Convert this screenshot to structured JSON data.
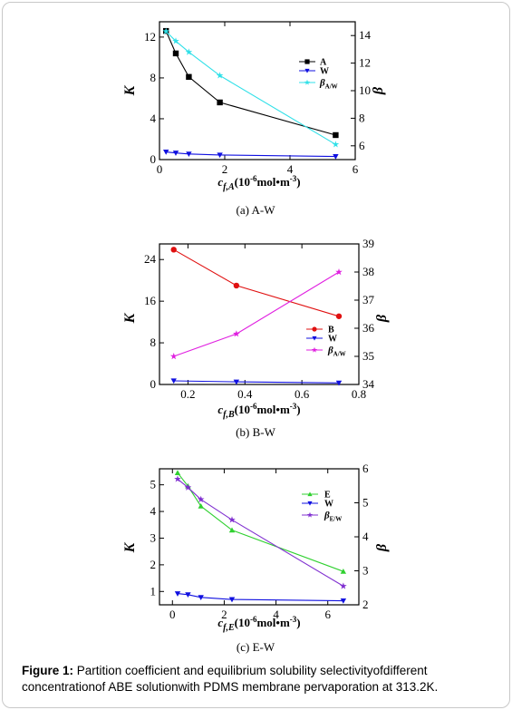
{
  "chart_data": [
    {
      "type": "line",
      "caption": "(a) A-W",
      "xlabel": "c",
      "xlabel_sub": "f,A",
      "xlabel_unit_pre": "(10",
      "xlabel_unit_exp": "-6",
      "xlabel_unit_mid": "mol•m",
      "xlabel_unit_exp2": "-3",
      "xlabel_unit_post": ")",
      "ylabel_left": "K",
      "ylabel_right": "β",
      "xlim": [
        0,
        6
      ],
      "ylim_left": [
        0,
        13.5
      ],
      "ylim_right": [
        5,
        15
      ],
      "xticks": [
        0,
        2,
        4,
        6
      ],
      "yticks_left": [
        0,
        4,
        8,
        12
      ],
      "yticks_right": [
        6,
        8,
        10,
        12,
        14
      ],
      "series": [
        {
          "name": "A",
          "axis": "left",
          "color": "#000000",
          "marker": "square",
          "x": [
            0.2,
            0.5,
            0.9,
            1.85,
            5.4
          ],
          "y": [
            12.6,
            10.4,
            8.1,
            5.6,
            2.4
          ]
        },
        {
          "name": "W",
          "axis": "left",
          "color": "#1010e0",
          "marker": "triangle-down",
          "x": [
            0.2,
            0.5,
            0.9,
            1.85,
            5.4
          ],
          "y": [
            0.75,
            0.65,
            0.55,
            0.45,
            0.3
          ]
        },
        {
          "name": "β",
          "name_sub": "A/W",
          "axis": "right",
          "color": "#30e0e8",
          "marker": "star",
          "x": [
            0.2,
            0.5,
            0.9,
            1.85,
            5.4
          ],
          "y": [
            14.3,
            13.6,
            12.8,
            11.1,
            6.1
          ]
        }
      ]
    },
    {
      "type": "line",
      "caption": "(b) B-W",
      "xlabel": "c",
      "xlabel_sub": "f,B",
      "xlabel_unit_pre": "(10",
      "xlabel_unit_exp": "-6",
      "xlabel_unit_mid": "mol•m",
      "xlabel_unit_exp2": "-3",
      "xlabel_unit_post": ")",
      "ylabel_left": "K",
      "ylabel_right": "β",
      "xlim": [
        0.1,
        0.8
      ],
      "ylim_left": [
        0,
        27
      ],
      "ylim_right": [
        34,
        39
      ],
      "xticks": [
        0.2,
        0.4,
        0.6,
        0.8
      ],
      "yticks_left": [
        0,
        8,
        16,
        24
      ],
      "yticks_right": [
        34,
        35,
        36,
        37,
        38,
        39
      ],
      "series": [
        {
          "name": "B",
          "axis": "left",
          "color": "#e01010",
          "marker": "circle",
          "x": [
            0.15,
            0.37,
            0.73
          ],
          "y": [
            25.9,
            19.0,
            13.1
          ]
        },
        {
          "name": "W",
          "axis": "left",
          "color": "#1010e0",
          "marker": "triangle-down",
          "x": [
            0.15,
            0.37,
            0.73
          ],
          "y": [
            0.7,
            0.5,
            0.3
          ]
        },
        {
          "name": "β",
          "name_sub": "A/W",
          "axis": "right",
          "color": "#e020e0",
          "marker": "star",
          "x": [
            0.15,
            0.37,
            0.73
          ],
          "y": [
            35.0,
            35.8,
            38.0
          ]
        }
      ]
    },
    {
      "type": "line",
      "caption": "(c) E-W",
      "xlabel": "c",
      "xlabel_sub": "f,E",
      "xlabel_unit_pre": "(10",
      "xlabel_unit_exp": "-6",
      "xlabel_unit_mid": "mol•m",
      "xlabel_unit_exp2": "-3",
      "xlabel_unit_post": ")",
      "ylabel_left": "K",
      "ylabel_right": "β",
      "xlim": [
        -0.5,
        7.2
      ],
      "ylim_left": [
        0.5,
        5.6
      ],
      "ylim_right": [
        2,
        6
      ],
      "xticks": [
        0,
        2,
        4,
        6
      ],
      "yticks_left": [
        1,
        2,
        3,
        4,
        5
      ],
      "yticks_right": [
        2,
        3,
        4,
        5,
        6
      ],
      "series": [
        {
          "name": "E",
          "axis": "left",
          "color": "#30d030",
          "marker": "triangle-up",
          "x": [
            0.2,
            0.6,
            1.1,
            2.3,
            6.6
          ],
          "y": [
            5.45,
            4.95,
            4.2,
            3.3,
            1.75
          ]
        },
        {
          "name": "W",
          "axis": "left",
          "color": "#1010e0",
          "marker": "triangle-down",
          "x": [
            0.2,
            0.6,
            1.1,
            2.3,
            6.6
          ],
          "y": [
            0.92,
            0.88,
            0.78,
            0.7,
            0.65
          ]
        },
        {
          "name": "β",
          "name_sub": "E/W",
          "axis": "right",
          "color": "#8030d0",
          "marker": "star",
          "x": [
            0.2,
            0.6,
            1.1,
            2.3,
            6.6
          ],
          "y": [
            5.7,
            5.45,
            5.1,
            4.5,
            2.55
          ]
        }
      ]
    }
  ],
  "caption": {
    "label": "Figure 1:",
    "text": " Partition coefficient and equilibrium solubility selectivityofdifferent concentrationof ABE solutionwith PDMS membrane pervaporation at 313.2K."
  }
}
